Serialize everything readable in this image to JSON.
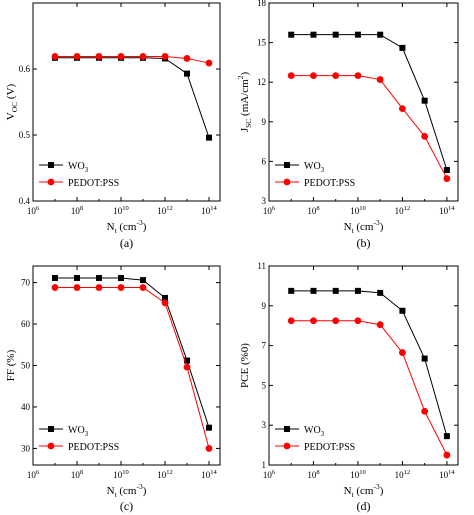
{
  "colors": {
    "wo3": "#000000",
    "pedot": "#ff0000"
  },
  "chart_data": [
    {
      "panel": "(a)",
      "type": "line",
      "x_ticks": [
        "10",
        "10",
        "10",
        "10",
        "10"
      ],
      "x_tick_exps": [
        "6",
        "8",
        "10",
        "12",
        "14"
      ],
      "x_tick_values": [
        6,
        8,
        10,
        12,
        14
      ],
      "xlabel": "N",
      "xlabel_sub": "t",
      "xlabel_unit": " (cm",
      "xlabel_sup": "-3",
      "xlabel_end": ")",
      "ylabel": "V",
      "ylabel_sub": "OC",
      "ylabel_unit": " (V)",
      "y_ticks": [
        "0.4",
        "0.5",
        "0.6"
      ],
      "y_tick_values": [
        0.4,
        0.5,
        0.6
      ],
      "xlim": [
        6,
        14.5
      ],
      "ylim": [
        0.4,
        0.7
      ],
      "x": [
        7,
        8,
        9,
        10,
        11,
        12,
        13,
        14
      ],
      "series": [
        {
          "name": "WO",
          "name_sub": "3",
          "marker": "square",
          "values": [
            0.617,
            0.617,
            0.617,
            0.617,
            0.617,
            0.616,
            0.593,
            0.496
          ]
        },
        {
          "name": "PEDOT:PSS",
          "name_sub": "",
          "marker": "circle",
          "values": [
            0.619,
            0.619,
            0.619,
            0.619,
            0.619,
            0.619,
            0.616,
            0.609
          ]
        }
      ],
      "legend_position": "bottom-left"
    },
    {
      "panel": "(b)",
      "type": "line",
      "x_ticks": [
        "10",
        "10",
        "10",
        "10",
        "10"
      ],
      "x_tick_exps": [
        "6",
        "8",
        "10",
        "12",
        "14"
      ],
      "x_tick_values": [
        6,
        8,
        10,
        12,
        14
      ],
      "xlabel": "N",
      "xlabel_sub": "t",
      "xlabel_unit": " (cm",
      "xlabel_sup": "-3",
      "xlabel_end": ")",
      "ylabel": "J",
      "ylabel_sub": "SC",
      "ylabel_unit": " (mA/cm",
      "ylabel_sup": "2",
      "ylabel_end": ")",
      "y_ticks": [
        "3",
        "6",
        "9",
        "12",
        "15",
        "18"
      ],
      "y_tick_values": [
        3,
        6,
        9,
        12,
        15,
        18
      ],
      "xlim": [
        6,
        14.5
      ],
      "ylim": [
        3,
        18
      ],
      "x": [
        7,
        8,
        9,
        10,
        11,
        12,
        13,
        14
      ],
      "series": [
        {
          "name": "WO",
          "name_sub": "3",
          "marker": "square",
          "values": [
            15.6,
            15.6,
            15.6,
            15.6,
            15.6,
            14.6,
            10.6,
            5.35
          ]
        },
        {
          "name": "PEDOT:PSS",
          "name_sub": "",
          "marker": "circle",
          "values": [
            12.5,
            12.5,
            12.5,
            12.5,
            12.2,
            10.0,
            7.9,
            4.7
          ]
        }
      ],
      "legend_position": "bottom-left"
    },
    {
      "panel": "(c)",
      "type": "line",
      "x_ticks": [
        "10",
        "10",
        "10",
        "10",
        "10"
      ],
      "x_tick_exps": [
        "6",
        "8",
        "10",
        "12",
        "14"
      ],
      "x_tick_values": [
        6,
        8,
        10,
        12,
        14
      ],
      "xlabel": "N",
      "xlabel_sub": "t",
      "xlabel_unit": " (cm",
      "xlabel_sup": "-3",
      "xlabel_end": ")",
      "ylabel": "FF (%)",
      "ylabel_sub": "",
      "ylabel_unit": "",
      "y_ticks": [
        "30",
        "40",
        "50",
        "60",
        "70"
      ],
      "y_tick_values": [
        30,
        40,
        50,
        60,
        70
      ],
      "xlim": [
        6,
        14.5
      ],
      "ylim": [
        26,
        74
      ],
      "x": [
        7,
        8,
        9,
        10,
        11,
        12,
        13,
        14
      ],
      "series": [
        {
          "name": "WO",
          "name_sub": "3",
          "marker": "square",
          "values": [
            71.1,
            71.1,
            71.1,
            71.1,
            70.6,
            66.3,
            51.2,
            35.0
          ]
        },
        {
          "name": "PEDOT:PSS",
          "name_sub": "",
          "marker": "circle",
          "values": [
            68.8,
            68.8,
            68.8,
            68.8,
            68.8,
            65.1,
            49.6,
            30.0
          ]
        }
      ],
      "legend_position": "bottom-left"
    },
    {
      "panel": "(d)",
      "type": "line",
      "x_ticks": [
        "10",
        "10",
        "10",
        "10",
        "10"
      ],
      "x_tick_exps": [
        "6",
        "8",
        "10",
        "12",
        "14"
      ],
      "x_tick_values": [
        6,
        8,
        10,
        12,
        14
      ],
      "xlabel": "N",
      "xlabel_sub": "t",
      "xlabel_unit": " (cm",
      "xlabel_sup": "-3",
      "xlabel_end": ")",
      "ylabel": "PCE (%0)",
      "ylabel_sub": "",
      "ylabel_unit": "",
      "y_ticks": [
        "1",
        "3",
        "5",
        "7",
        "9",
        "11"
      ],
      "y_tick_values": [
        1,
        3,
        5,
        7,
        9,
        11
      ],
      "xlim": [
        6,
        14.5
      ],
      "ylim": [
        1,
        11
      ],
      "x": [
        7,
        8,
        9,
        10,
        11,
        12,
        13,
        14
      ],
      "series": [
        {
          "name": "WO",
          "name_sub": "3",
          "marker": "square",
          "values": [
            9.75,
            9.75,
            9.75,
            9.75,
            9.65,
            8.75,
            6.35,
            2.45
          ]
        },
        {
          "name": "PEDOT:PSS",
          "name_sub": "",
          "marker": "circle",
          "values": [
            8.25,
            8.25,
            8.25,
            8.25,
            8.05,
            6.65,
            3.7,
            1.5
          ]
        }
      ],
      "legend_position": "bottom-left"
    }
  ]
}
